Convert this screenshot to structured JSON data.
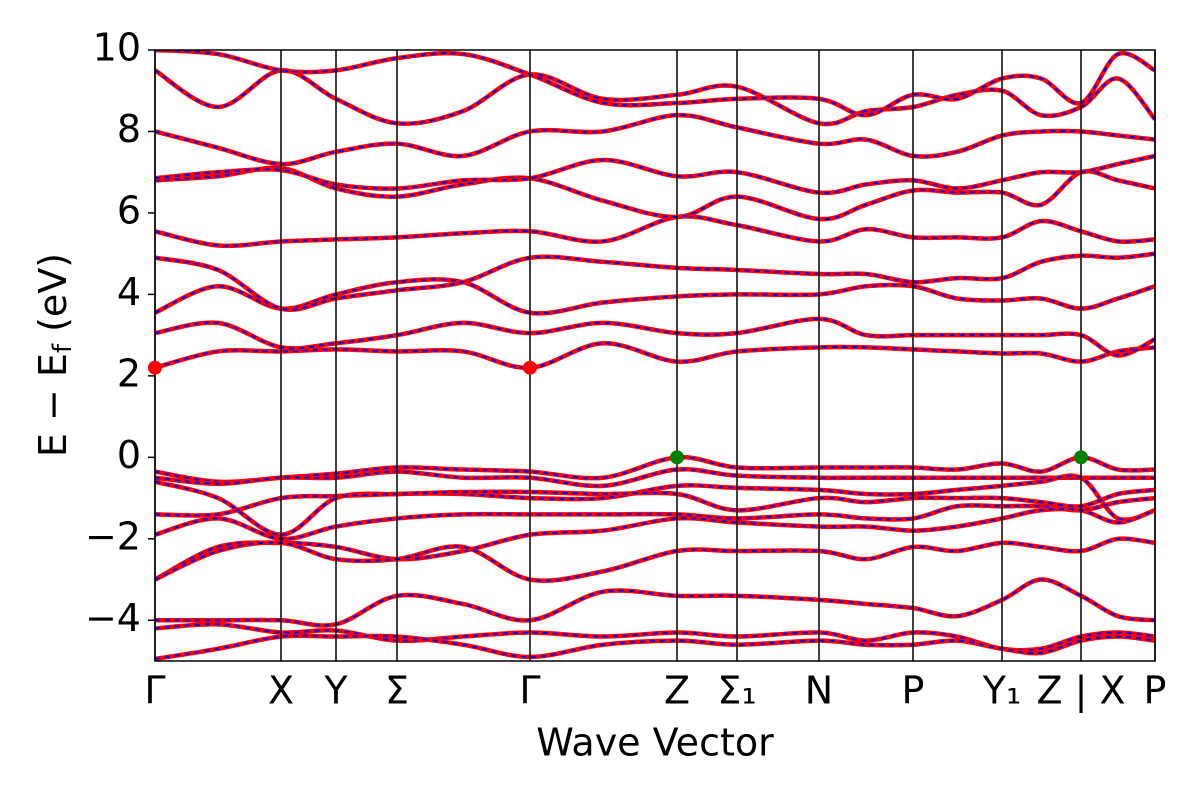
{
  "chart_data": {
    "type": "band_structure",
    "x_label": "Wave Vector",
    "y_label": [
      "E − E",
      "f",
      " (eV)"
    ],
    "xlim": [
      0,
      1000
    ],
    "ylim": [
      -5,
      10
    ],
    "xticks": [
      {
        "value": 0,
        "label": "Γ"
      },
      {
        "value": 126,
        "label": "X"
      },
      {
        "value": 181,
        "label": "Y"
      },
      {
        "value": 242,
        "label": "Σ"
      },
      {
        "value": 375,
        "label": "Γ"
      },
      {
        "value": 522,
        "label": "Z"
      },
      {
        "value": 582,
        "label": "Σ₁"
      },
      {
        "value": 664,
        "label": "N"
      },
      {
        "value": 758,
        "label": "P"
      },
      {
        "value": 847,
        "label": "Y₁"
      },
      {
        "value": 926,
        "label": "Z | X"
      },
      {
        "value": 1000,
        "label": "P"
      }
    ],
    "yticks": [
      {
        "value": -4,
        "label": "−4"
      },
      {
        "value": -2,
        "label": "−2"
      },
      0,
      2,
      4,
      6,
      8,
      10
    ],
    "xgrid": true,
    "line_color": "#ff0000",
    "dash_color": "#0000ff",
    "x": [
      0,
      63,
      126,
      181,
      242,
      308,
      375,
      448,
      522,
      582,
      664,
      711,
      758,
      802,
      847,
      886,
      926,
      963,
      1000
    ],
    "series": [
      {
        "values": [
          -0.35,
          -0.6,
          -0.5,
          -0.4,
          -0.25,
          -0.3,
          -0.35,
          -0.5,
          0,
          -0.25,
          -0.25,
          -0.25,
          -0.25,
          -0.3,
          -0.15,
          -0.35,
          0,
          -0.3,
          -0.3
        ]
      },
      {
        "values": [
          -0.5,
          -0.65,
          -0.5,
          -0.5,
          -0.35,
          -0.5,
          -0.5,
          -0.7,
          -0.3,
          -0.45,
          -0.5,
          -0.5,
          -0.5,
          -0.5,
          -0.5,
          -0.5,
          -0.5,
          -0.5,
          -0.5
        ]
      },
      {
        "values": [
          -0.6,
          -1.0,
          -1.9,
          -1.0,
          -0.9,
          -0.9,
          -1.0,
          -1.0,
          -0.7,
          -0.75,
          -0.8,
          -0.9,
          -0.9,
          -0.8,
          -0.7,
          -0.6,
          -0.5,
          -1.5,
          -1.3
        ]
      },
      {
        "values": [
          -1.4,
          -1.4,
          -1.0,
          -0.95,
          -0.9,
          -0.85,
          -0.85,
          -0.9,
          -0.9,
          -1.3,
          -1.0,
          -1.1,
          -1.0,
          -1.0,
          -1.0,
          -1.1,
          -1.2,
          -0.9,
          -0.8
        ]
      },
      {
        "values": [
          -1.9,
          -1.5,
          -2.0,
          -1.7,
          -1.5,
          -1.4,
          -1.4,
          -1.4,
          -1.4,
          -1.5,
          -1.4,
          -1.5,
          -1.5,
          -1.2,
          -1.2,
          -1.2,
          -1.3,
          -1.1,
          -1.0
        ]
      },
      {
        "values": [
          -3.0,
          -2.2,
          -2.1,
          -2.2,
          -2.5,
          -2.3,
          -1.9,
          -1.8,
          -1.5,
          -1.6,
          -1.7,
          -1.7,
          -1.8,
          -1.7,
          -1.5,
          -1.3,
          -1.3,
          -1.6,
          -1.3
        ]
      },
      {
        "values": [
          -3.0,
          -2.3,
          -2.1,
          -2.5,
          -2.5,
          -2.2,
          -3.0,
          -2.8,
          -2.3,
          -2.3,
          -2.3,
          -2.5,
          -2.2,
          -2.3,
          -2.1,
          -2.2,
          -2.3,
          -2.0,
          -2.1
        ]
      },
      {
        "values": [
          -4.0,
          -4.0,
          -4.0,
          -4.1,
          -3.4,
          -3.6,
          -4.0,
          -3.3,
          -3.4,
          -3.4,
          -3.5,
          -3.6,
          -3.7,
          -3.9,
          -3.5,
          -3.0,
          -3.4,
          -3.9,
          -4.0
        ]
      },
      {
        "values": [
          -4.2,
          -4.1,
          -4.3,
          -4.25,
          -4.5,
          -4.4,
          -4.3,
          -4.4,
          -4.3,
          -4.4,
          -4.3,
          -4.5,
          -4.3,
          -4.4,
          -4.7,
          -4.7,
          -4.4,
          -4.3,
          -4.4
        ]
      },
      {
        "values": [
          -4.95,
          -4.7,
          -4.4,
          -4.4,
          -4.4,
          -4.6,
          -4.9,
          -4.6,
          -4.5,
          -4.6,
          -4.5,
          -4.6,
          -4.6,
          -4.5,
          -4.7,
          -4.8,
          -4.5,
          -4.4,
          -4.5
        ]
      },
      {
        "values": [
          2.2,
          2.6,
          2.6,
          2.65,
          2.6,
          2.6,
          2.2,
          2.8,
          2.35,
          2.6,
          2.7,
          2.7,
          2.65,
          2.6,
          2.55,
          2.55,
          2.35,
          2.6,
          2.7
        ]
      },
      {
        "values": [
          3.05,
          3.3,
          2.7,
          2.8,
          3.0,
          3.3,
          3.05,
          3.3,
          3.05,
          3.05,
          3.4,
          3.0,
          3.0,
          3.0,
          3.0,
          3.0,
          3.0,
          2.5,
          2.9
        ]
      },
      {
        "values": [
          3.55,
          4.2,
          3.65,
          4.0,
          4.3,
          4.3,
          3.55,
          3.8,
          3.95,
          4.0,
          4.0,
          4.2,
          4.2,
          3.9,
          3.85,
          3.9,
          3.65,
          3.9,
          4.2
        ]
      },
      {
        "values": [
          4.9,
          4.6,
          3.65,
          3.9,
          4.1,
          4.3,
          4.9,
          4.8,
          4.65,
          4.6,
          4.5,
          4.5,
          4.3,
          4.4,
          4.4,
          4.8,
          4.95,
          4.9,
          5.0
        ]
      },
      {
        "values": [
          5.55,
          5.2,
          5.3,
          5.35,
          5.4,
          5.5,
          5.55,
          5.3,
          5.9,
          5.7,
          5.3,
          5.6,
          5.4,
          5.4,
          5.4,
          5.8,
          5.55,
          5.3,
          5.35
        ]
      },
      {
        "values": [
          6.8,
          6.9,
          7.1,
          6.6,
          6.4,
          6.7,
          6.85,
          6.3,
          5.9,
          6.4,
          5.85,
          6.2,
          6.55,
          6.5,
          6.5,
          6.2,
          7.0,
          6.8,
          6.6
        ]
      },
      {
        "values": [
          6.85,
          7.0,
          7.05,
          6.7,
          6.6,
          6.8,
          6.85,
          7.3,
          6.9,
          7.0,
          6.5,
          6.7,
          6.8,
          6.6,
          6.8,
          7.0,
          7.0,
          7.2,
          7.4
        ]
      },
      {
        "values": [
          8.0,
          7.6,
          7.2,
          7.5,
          7.7,
          7.4,
          8.0,
          8.0,
          8.4,
          8.1,
          7.7,
          7.8,
          7.4,
          7.5,
          7.9,
          8.0,
          8.0,
          7.9,
          7.8
        ]
      },
      {
        "values": [
          9.5,
          8.6,
          9.5,
          8.8,
          8.2,
          8.5,
          9.4,
          8.8,
          8.9,
          9.1,
          8.2,
          8.5,
          8.6,
          8.9,
          9.0,
          8.4,
          8.6,
          9.3,
          8.3
        ]
      },
      {
        "values": [
          10.0,
          9.9,
          9.5,
          9.5,
          9.8,
          9.9,
          9.4,
          8.7,
          8.7,
          8.8,
          8.8,
          8.4,
          8.9,
          8.8,
          9.3,
          9.3,
          8.7,
          9.9,
          9.5
        ]
      }
    ],
    "markers": [
      {
        "x": 0,
        "y": 2.2,
        "color": "#ff0000"
      },
      {
        "x": 375,
        "y": 2.2,
        "color": "#ff0000"
      },
      {
        "x": 522,
        "y": 0,
        "color": "#008000"
      },
      {
        "x": 926,
        "y": 0,
        "color": "#008000"
      }
    ]
  }
}
